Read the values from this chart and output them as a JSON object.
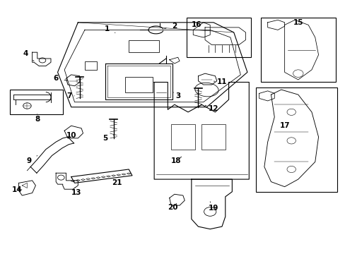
{
  "background_color": "#ffffff",
  "line_color": "#000000",
  "label_color": "#000000",
  "parts": [
    1,
    2,
    3,
    4,
    5,
    6,
    7,
    8,
    9,
    10,
    11,
    12,
    13,
    14,
    15,
    16,
    17,
    18,
    19,
    20,
    21
  ]
}
